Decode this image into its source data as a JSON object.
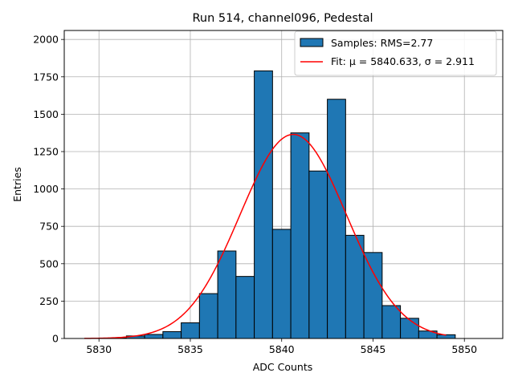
{
  "chart_data": {
    "type": "bar",
    "title": "Run 514, channel096, Pedestal",
    "xlabel": "ADC Counts",
    "ylabel": "Entries",
    "xlim": [
      5828.1,
      5852.1
    ],
    "ylim": [
      0,
      2060
    ],
    "grid": true,
    "legend_position": "top-right",
    "x_ticks": [
      5830,
      5835,
      5840,
      5845,
      5850
    ],
    "x_tick_labels": [
      "5830",
      "5835",
      "5840",
      "5845",
      "5850"
    ],
    "y_ticks": [
      0,
      250,
      500,
      750,
      1000,
      1250,
      1500,
      1750,
      2000
    ],
    "y_tick_labels": [
      "0",
      "250",
      "500",
      "750",
      "1000",
      "1250",
      "1500",
      "1750",
      "2000"
    ],
    "histogram": {
      "name": "Samples: RMS=2.77",
      "color": "#1f77b4",
      "edgecolor": "#000000",
      "bin_edges": [
        5830.5,
        5831.5,
        5832.5,
        5833.5,
        5834.5,
        5835.5,
        5836.5,
        5837.5,
        5838.5,
        5839.5,
        5840.5,
        5841.5,
        5842.5,
        5843.5,
        5844.5,
        5845.5,
        5846.5,
        5847.5,
        5848.5,
        5849.5
      ],
      "bin_centers": [
        5831,
        5832,
        5833,
        5834,
        5835,
        5836,
        5837,
        5838,
        5839,
        5840,
        5841,
        5842,
        5843,
        5844,
        5845,
        5846,
        5847,
        5848,
        5849
      ],
      "counts": [
        3,
        17,
        27,
        46,
        105,
        300,
        585,
        415,
        1790,
        730,
        1375,
        1120,
        1600,
        690,
        575,
        220,
        135,
        50,
        25
      ]
    },
    "fit": {
      "name": "Fit: μ = 5840.633, σ = 2.911",
      "color": "#ff0000",
      "mu": 5840.633,
      "sigma": 2.911,
      "amplitude": 1365,
      "x_range": [
        5829.2,
        5849.0
      ]
    }
  }
}
